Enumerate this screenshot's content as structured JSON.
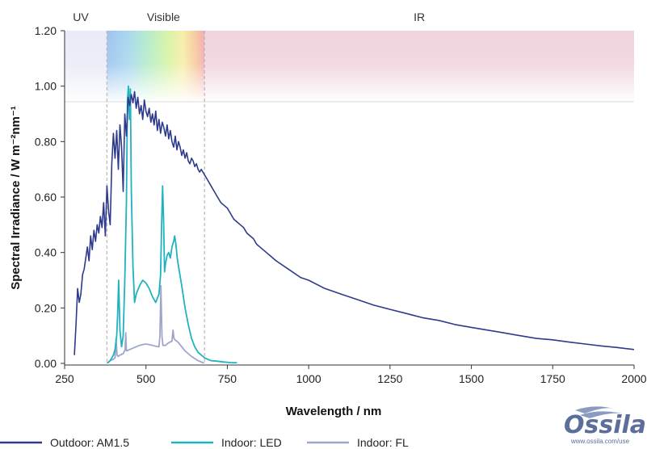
{
  "chart_data": {
    "type": "line",
    "title": "",
    "xlabel": "Wavelength / nm",
    "ylabel": "Spectral Irradiance / W m⁻²nm⁻¹",
    "xlim": [
      250,
      2000
    ],
    "ylim": [
      0,
      1.2
    ],
    "x_ticks": [
      "250",
      "500",
      "750",
      "1000",
      "1250",
      "1500",
      "1750",
      "2000"
    ],
    "x_tick_values": [
      250,
      500,
      750,
      1000,
      1250,
      1500,
      1750,
      2000
    ],
    "y_ticks": [
      "0.00",
      "0.20",
      "0.40",
      "0.60",
      "0.80",
      "1.00",
      "1.20"
    ],
    "y_tick_values": [
      0,
      0.2,
      0.4,
      0.6,
      0.8,
      1.0,
      1.2
    ],
    "grid": false,
    "legend_position": "bottom",
    "regions": [
      {
        "label": "UV",
        "from": 250,
        "to": 380
      },
      {
        "label": "Visible",
        "from": 380,
        "to": 680
      },
      {
        "label": "IR",
        "from": 680,
        "to": 2000
      }
    ],
    "series": [
      {
        "name": "Outdoor: AM1.5",
        "label_prefix": "Outdoor:",
        "label_suffix": "AM1.5",
        "color": "#2e3a8c",
        "x": [
          280,
          285,
          290,
          295,
          300,
          305,
          310,
          315,
          320,
          325,
          330,
          335,
          340,
          345,
          350,
          355,
          360,
          365,
          370,
          375,
          380,
          385,
          390,
          395,
          400,
          405,
          410,
          415,
          420,
          425,
          430,
          435,
          440,
          445,
          450,
          455,
          460,
          465,
          470,
          475,
          480,
          485,
          490,
          495,
          500,
          505,
          510,
          515,
          520,
          525,
          530,
          535,
          540,
          545,
          550,
          555,
          560,
          565,
          570,
          575,
          580,
          585,
          590,
          595,
          600,
          605,
          610,
          615,
          620,
          625,
          630,
          635,
          640,
          645,
          650,
          655,
          660,
          665,
          670,
          675,
          680,
          690,
          700,
          710,
          720,
          730,
          740,
          750,
          760,
          770,
          780,
          790,
          800,
          810,
          820,
          830,
          840,
          850,
          860,
          870,
          880,
          890,
          900,
          925,
          950,
          975,
          1000,
          1050,
          1100,
          1150,
          1200,
          1250,
          1300,
          1350,
          1400,
          1450,
          1500,
          1550,
          1600,
          1650,
          1700,
          1750,
          1800,
          1850,
          1900,
          1950,
          2000
        ],
        "values": [
          0.03,
          0.14,
          0.27,
          0.22,
          0.25,
          0.32,
          0.34,
          0.38,
          0.42,
          0.37,
          0.46,
          0.41,
          0.48,
          0.44,
          0.5,
          0.47,
          0.53,
          0.49,
          0.58,
          0.46,
          0.64,
          0.55,
          0.5,
          0.72,
          0.83,
          0.74,
          0.84,
          0.7,
          0.86,
          0.78,
          0.62,
          0.9,
          0.82,
          0.96,
          0.93,
          0.97,
          0.94,
          0.98,
          0.92,
          0.96,
          0.9,
          0.93,
          0.88,
          0.95,
          0.91,
          0.89,
          0.92,
          0.87,
          0.9,
          0.86,
          0.91,
          0.84,
          0.88,
          0.83,
          0.87,
          0.85,
          0.82,
          0.86,
          0.81,
          0.84,
          0.8,
          0.78,
          0.82,
          0.77,
          0.8,
          0.78,
          0.75,
          0.77,
          0.74,
          0.76,
          0.73,
          0.72,
          0.74,
          0.73,
          0.71,
          0.72,
          0.7,
          0.69,
          0.7,
          0.69,
          0.68,
          0.66,
          0.64,
          0.62,
          0.6,
          0.58,
          0.57,
          0.56,
          0.54,
          0.52,
          0.51,
          0.5,
          0.49,
          0.47,
          0.46,
          0.45,
          0.43,
          0.42,
          0.41,
          0.4,
          0.39,
          0.38,
          0.37,
          0.35,
          0.33,
          0.31,
          0.3,
          0.27,
          0.25,
          0.23,
          0.21,
          0.195,
          0.18,
          0.165,
          0.155,
          0.14,
          0.13,
          0.12,
          0.11,
          0.1,
          0.09,
          0.085,
          0.077,
          0.07,
          0.063,
          0.057,
          0.05
        ]
      },
      {
        "name": "Indoor: LED",
        "label_prefix": "Indoor:",
        "label_suffix": "LED",
        "color": "#1fb3bf",
        "x": [
          380,
          390,
          400,
          405,
          410,
          413,
          416,
          420,
          425,
          430,
          435,
          440,
          443,
          446,
          449,
          452,
          455,
          460,
          465,
          470,
          480,
          490,
          500,
          510,
          520,
          530,
          540,
          545,
          548,
          551,
          554,
          557,
          560,
          565,
          570,
          575,
          580,
          585,
          588,
          592,
          596,
          600,
          610,
          620,
          630,
          640,
          650,
          660,
          670,
          680,
          690,
          700,
          720,
          740,
          760,
          780
        ],
        "values": [
          0.0,
          0.01,
          0.03,
          0.05,
          0.1,
          0.18,
          0.3,
          0.12,
          0.06,
          0.1,
          0.3,
          0.58,
          0.95,
          1.0,
          0.88,
          0.99,
          0.62,
          0.35,
          0.22,
          0.25,
          0.28,
          0.3,
          0.29,
          0.27,
          0.24,
          0.22,
          0.25,
          0.32,
          0.5,
          0.64,
          0.52,
          0.33,
          0.36,
          0.39,
          0.4,
          0.38,
          0.42,
          0.44,
          0.46,
          0.43,
          0.38,
          0.35,
          0.28,
          0.2,
          0.14,
          0.09,
          0.06,
          0.04,
          0.03,
          0.02,
          0.015,
          0.01,
          0.008,
          0.005,
          0.003,
          0.002
        ]
      },
      {
        "name": "Indoor: FL",
        "label_prefix": "Indoor:",
        "label_suffix": "FL",
        "color": "#9ea6cc",
        "x": [
          380,
          390,
          400,
          405,
          408,
          411,
          414,
          420,
          430,
          436,
          438,
          440,
          450,
          460,
          470,
          480,
          490,
          500,
          510,
          520,
          530,
          540,
          543,
          546,
          549,
          552,
          560,
          570,
          580,
          583,
          586,
          589,
          595,
          600,
          610,
          620,
          630,
          640,
          660,
          680
        ],
        "values": [
          0.0,
          0.01,
          0.015,
          0.02,
          0.09,
          0.03,
          0.025,
          0.03,
          0.035,
          0.05,
          0.11,
          0.045,
          0.05,
          0.055,
          0.06,
          0.065,
          0.068,
          0.07,
          0.068,
          0.065,
          0.062,
          0.06,
          0.1,
          0.28,
          0.1,
          0.065,
          0.065,
          0.075,
          0.08,
          0.12,
          0.09,
          0.085,
          0.08,
          0.075,
          0.06,
          0.045,
          0.035,
          0.025,
          0.01,
          0.0
        ]
      }
    ]
  },
  "logo": {
    "text": "Ossila",
    "url": "www.ossila.com/use"
  }
}
